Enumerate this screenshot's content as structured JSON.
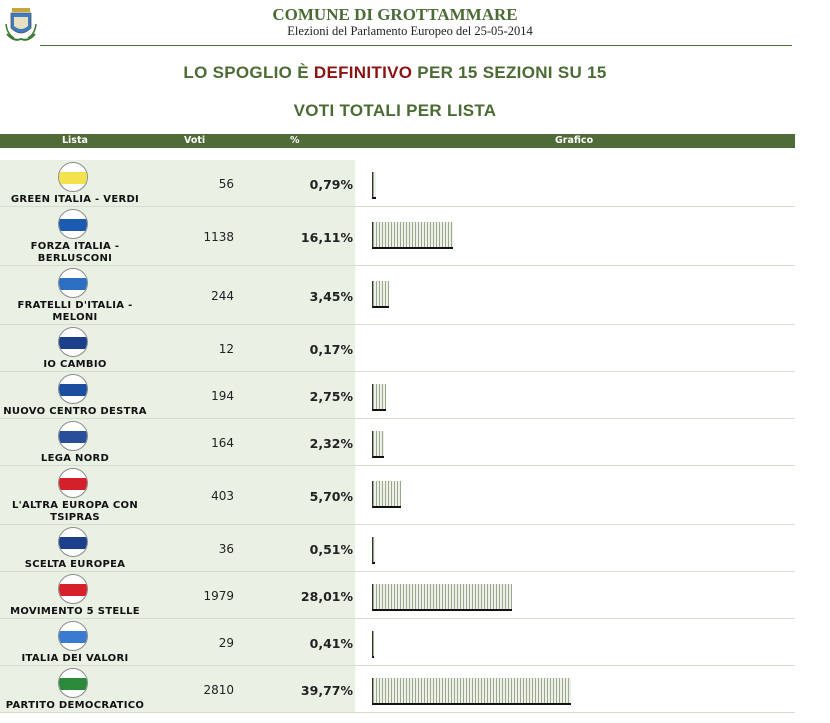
{
  "header": {
    "title": "COMUNE DI GROTTAMMARE",
    "subtitle": "Elezioni del Parlamento Europeo del 25-05-2014"
  },
  "status": {
    "prefix": "LO SPOGLIO È ",
    "highlight": "DEFINITIVO",
    "suffix": " PER 15 SEZIONI SU 15"
  },
  "section_title": "VOTI TOTALI PER LISTA",
  "table": {
    "columns": [
      "Lista",
      "Voti",
      "%",
      "Grafico"
    ],
    "rows": [
      {
        "name": "GREEN ITALIA - VERDI",
        "votes": "56",
        "pct": "0,79%",
        "pct_value": 0.79,
        "logo": "green-italia-verdi-logo",
        "color": "#f3e24b"
      },
      {
        "name": "FORZA ITALIA - BERLUSCONI",
        "votes": "1138",
        "pct": "16,11%",
        "pct_value": 16.11,
        "logo": "forza-italia-logo",
        "color": "#1a5ab0"
      },
      {
        "name": "FRATELLI D'ITALIA - MELONI",
        "votes": "244",
        "pct": "3,45%",
        "pct_value": 3.45,
        "logo": "fratelli-ditalia-logo",
        "color": "#2a6fc2"
      },
      {
        "name": "IO CAMBIO",
        "votes": "12",
        "pct": "0,17%",
        "pct_value": 0.17,
        "logo": "io-cambio-logo",
        "color": "#1b3f8a"
      },
      {
        "name": "NUOVO CENTRO DESTRA",
        "votes": "194",
        "pct": "2,75%",
        "pct_value": 2.75,
        "logo": "nuovo-centro-destra-logo",
        "color": "#1a4fa0"
      },
      {
        "name": "LEGA NORD",
        "votes": "164",
        "pct": "2,32%",
        "pct_value": 2.32,
        "logo": "lega-nord-logo",
        "color": "#2a4f9a"
      },
      {
        "name": "L'ALTRA EUROPA CON TSIPRAS",
        "votes": "403",
        "pct": "5,70%",
        "pct_value": 5.7,
        "logo": "altra-europa-tsipras-logo",
        "color": "#d4202a"
      },
      {
        "name": "SCELTA EUROPEA",
        "votes": "36",
        "pct": "0,51%",
        "pct_value": 0.51,
        "logo": "scelta-europea-logo",
        "color": "#1b3f8a"
      },
      {
        "name": "MOVIMENTO 5 STELLE",
        "votes": "1979",
        "pct": "28,01%",
        "pct_value": 28.01,
        "logo": "movimento-5-stelle-logo",
        "color": "#d6202a"
      },
      {
        "name": "ITALIA DEI VALORI",
        "votes": "29",
        "pct": "0,41%",
        "pct_value": 0.41,
        "logo": "italia-dei-valori-logo",
        "color": "#3a7ad0"
      },
      {
        "name": "PARTITO DEMOCRATICO",
        "votes": "2810",
        "pct": "39,77%",
        "pct_value": 39.77,
        "logo": "partito-democratico-logo",
        "color": "#2a8a3a"
      }
    ]
  },
  "colors": {
    "accent_green": "#4b6b34",
    "header_bar": "#4e6b38",
    "highlight_red": "#8a1414",
    "row_shade": "#e9f0e4"
  }
}
